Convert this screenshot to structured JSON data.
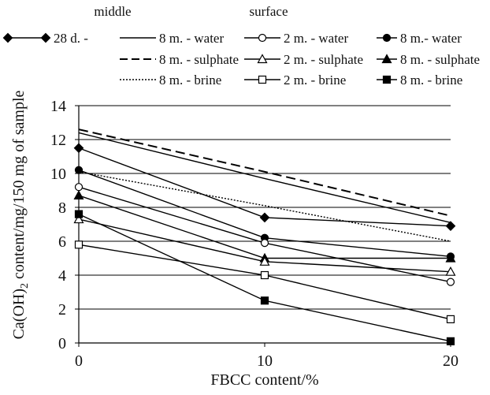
{
  "legend": {
    "groups": [
      {
        "heading": "middle",
        "entries": [
          {
            "label": "8 m. - water",
            "series_id": "mid_water"
          },
          {
            "label": "8 m. - sulphate",
            "series_id": "mid_sulphate"
          },
          {
            "label": "8 m. - brine",
            "series_id": "mid_brine"
          }
        ]
      },
      {
        "heading": "surface",
        "entries": [
          {
            "label": "2 m. - water",
            "series_id": "s2_water"
          },
          {
            "label": "2 m. - sulphate",
            "series_id": "s2_sulphate"
          },
          {
            "label": "2 m. - brine",
            "series_id": "s2_brine"
          }
        ]
      },
      {
        "heading": "",
        "entries": [
          {
            "label": "8 m.- water",
            "series_id": "s8_water"
          },
          {
            "label": "8 m. - sulphate",
            "series_id": "s8_sulphate"
          },
          {
            "label": "8 m. - brine",
            "series_id": "s8_brine"
          }
        ]
      }
    ],
    "standalone": {
      "label": "28 d. -",
      "series_id": "d28"
    }
  },
  "chart_data": {
    "type": "line",
    "title": "",
    "xlabel": "FBCC content/%",
    "ylabel_main": "Ca(OH)",
    "ylabel_sub": "2",
    "ylabel_rest": " content/mg/150 mg of sample",
    "x": [
      0,
      10,
      20
    ],
    "xlim": [
      0,
      20
    ],
    "ylim": [
      0,
      14
    ],
    "x_ticks": [
      0,
      10,
      20
    ],
    "y_ticks": [
      0,
      2,
      4,
      6,
      8,
      10,
      12,
      14
    ],
    "grid": "horizontal",
    "series": [
      {
        "id": "mid_sulphate",
        "name": "8 m. - sulphate",
        "values": [
          12.6,
          10.1,
          7.5
        ],
        "line": "dashed",
        "marker": "none",
        "color": "#000000"
      },
      {
        "id": "mid_water",
        "name": "8 m. - water",
        "values": [
          12.4,
          9.7,
          7.1
        ],
        "line": "solid",
        "marker": "none",
        "color": "#000000"
      },
      {
        "id": "mid_brine",
        "name": "8 m. - brine",
        "values": [
          10.1,
          8.1,
          6.0
        ],
        "line": "dotted",
        "marker": "none",
        "color": "#000000"
      },
      {
        "id": "d28",
        "name": "28 d. -",
        "values": [
          11.5,
          7.4,
          6.9
        ],
        "line": "solid",
        "marker": "diamond-filled",
        "color": "#000000"
      },
      {
        "id": "s8_water",
        "name": "8 m.- water",
        "values": [
          10.2,
          6.2,
          5.1
        ],
        "line": "solid",
        "marker": "circle-filled",
        "color": "#000000"
      },
      {
        "id": "s2_water",
        "name": "2 m. - water",
        "values": [
          9.2,
          5.9,
          3.6
        ],
        "line": "solid",
        "marker": "circle-open",
        "color": "#000000"
      },
      {
        "id": "s8_sulphate",
        "name": "8 m. - sulphate",
        "values": [
          8.7,
          5.0,
          5.0
        ],
        "line": "solid",
        "marker": "triangle-filled",
        "color": "#000000"
      },
      {
        "id": "s2_sulphate",
        "name": "2 m. - sulphate",
        "values": [
          7.3,
          4.8,
          4.2
        ],
        "line": "solid",
        "marker": "triangle-open",
        "color": "#000000"
      },
      {
        "id": "s8_brine",
        "name": "8 m. - brine",
        "values": [
          7.6,
          2.5,
          0.1
        ],
        "line": "solid",
        "marker": "square-filled",
        "color": "#000000"
      },
      {
        "id": "s2_brine",
        "name": "2 m. - brine",
        "values": [
          5.8,
          4.0,
          1.4
        ],
        "line": "solid",
        "marker": "square-open",
        "color": "#000000"
      }
    ]
  }
}
